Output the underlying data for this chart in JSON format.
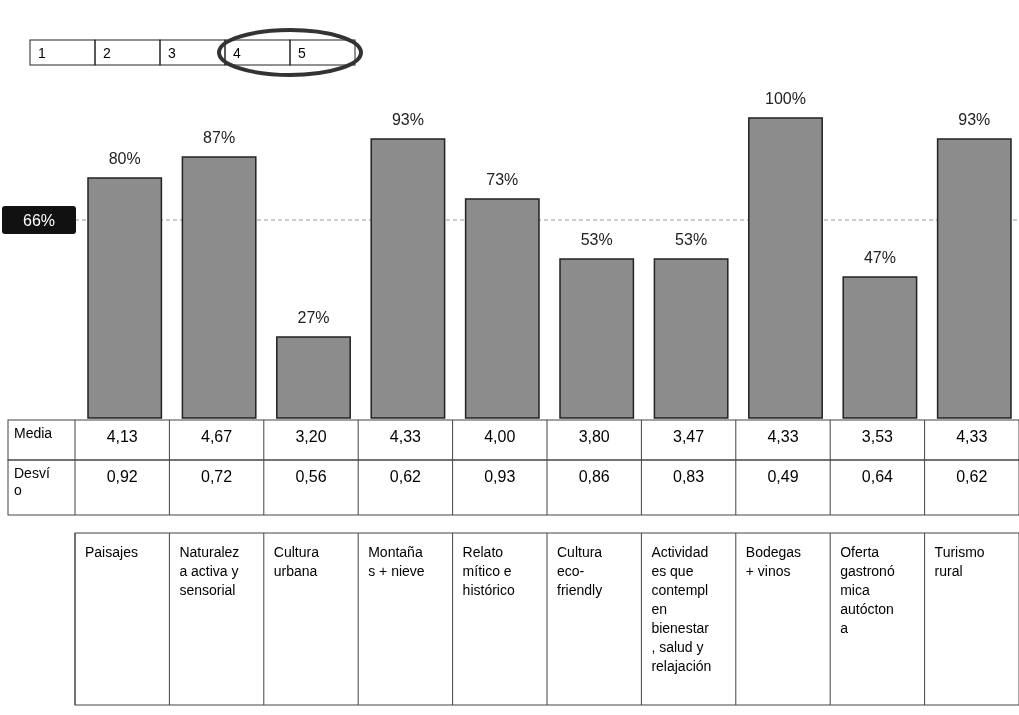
{
  "chart_data": {
    "type": "bar",
    "categories": [
      "Paisajes",
      "Naturalez\na activa y\nsensorial",
      "Cultura\nurbana",
      "Montaña\ns + nieve",
      "Relato\nmítico e\nhistórico",
      "Cultura\neco-\nfriendly",
      "Actividad\nes que\ncontempl\nen\nbienestar\n, salud y\nrelajación",
      "Bodegas\n+ vinos",
      "Oferta\ngastronó\nmica\nautócton\na",
      "Turismo\nrural"
    ],
    "series": [
      {
        "color": "#8c8c8c",
        "values": [
          80,
          87,
          27,
          93,
          73,
          53,
          53,
          100,
          47,
          93
        ],
        "value_labels": [
          "80%",
          "87%",
          "27%",
          "93%",
          "73%",
          "53%",
          "53%",
          "100%",
          "47%",
          "93%"
        ]
      }
    ],
    "ref_lines": [
      {
        "axis": "y",
        "value": 66,
        "label": "66%",
        "color": "#999999",
        "line_style": "dashed"
      }
    ],
    "annotations": [
      "1",
      "2",
      "3",
      "4",
      "5",
      "Media",
      "4,13",
      "4,67",
      "3,20",
      "4,33",
      "4,00",
      "3,80",
      "3,47",
      "4,33",
      "3,53",
      "4,33",
      "Desví\no",
      "0,92",
      "0,72",
      "0,56",
      "0,62",
      "0,93",
      "0,86",
      "0,83",
      "0,49",
      "0,64",
      "0,62"
    ]
  }
}
